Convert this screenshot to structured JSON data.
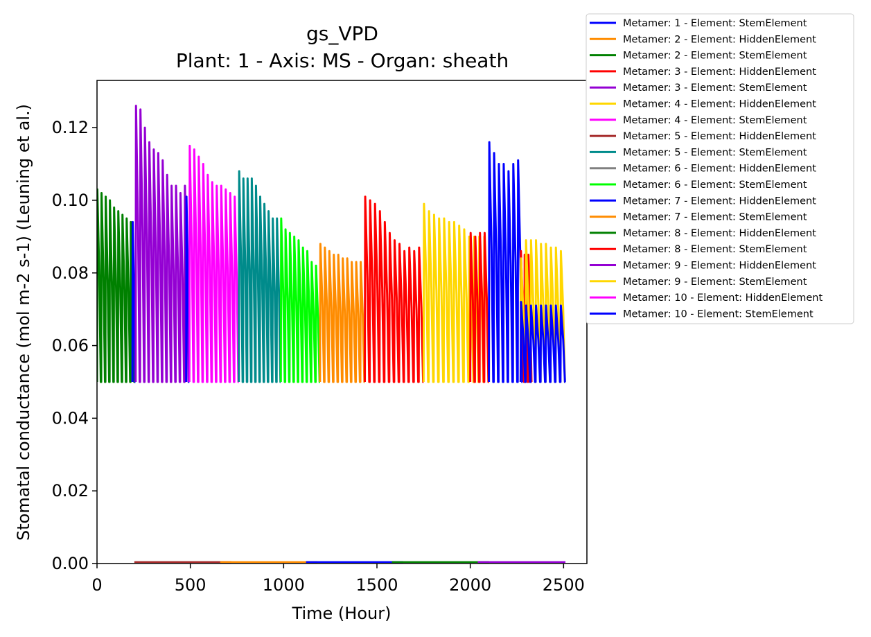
{
  "chart_data": {
    "type": "line",
    "title": "gs_VPD",
    "subtitle": "Plant: 1 - Axis: MS - Organ: sheath",
    "xlabel": "Time (Hour)",
    "ylabel": "Stomatal conductance (mol m-2 s-1) (Leuning et al.)",
    "xlim": [
      0,
      2625
    ],
    "ylim": [
      0,
      0.133
    ],
    "x_ticks": [
      0,
      500,
      1000,
      1500,
      2000,
      2500
    ],
    "x_tick_labels": [
      "0",
      "500",
      "1000",
      "1500",
      "2000",
      "2500"
    ],
    "y_ticks": [
      0,
      0.02,
      0.04,
      0.06,
      0.08,
      0.1,
      0.12
    ],
    "y_tick_labels": [
      "0.00",
      "0.02",
      "0.04",
      "0.06",
      "0.08",
      "0.10",
      "0.12"
    ],
    "grid": false,
    "legend_position": "outside-top-right",
    "night_floor": 0.05,
    "legend": [
      {
        "label": "Metamer: 1 - Element: StemElement",
        "color": "#0000ff"
      },
      {
        "label": "Metamer: 2 - Element: HiddenElement",
        "color": "#ff8c00"
      },
      {
        "label": "Metamer: 2 - Element: StemElement",
        "color": "#008000"
      },
      {
        "label": "Metamer: 3 - Element: HiddenElement",
        "color": "#ff0000"
      },
      {
        "label": "Metamer: 3 - Element: StemElement",
        "color": "#9400d3"
      },
      {
        "label": "Metamer: 4 - Element: HiddenElement",
        "color": "#ffd700"
      },
      {
        "label": "Metamer: 4 - Element: StemElement",
        "color": "#ff00ff"
      },
      {
        "label": "Metamer: 5 - Element: HiddenElement",
        "color": "#a52a2a"
      },
      {
        "label": "Metamer: 5 - Element: StemElement",
        "color": "#008b8b"
      },
      {
        "label": "Metamer: 6 - Element: HiddenElement",
        "color": "#808080"
      },
      {
        "label": "Metamer: 6 - Element: StemElement",
        "color": "#00ff00"
      },
      {
        "label": "Metamer: 7 - Element: HiddenElement",
        "color": "#0000ff"
      },
      {
        "label": "Metamer: 7 - Element: StemElement",
        "color": "#ff8c00"
      },
      {
        "label": "Metamer: 8 - Element: HiddenElement",
        "color": "#008000"
      },
      {
        "label": "Metamer: 8 - Element: StemElement",
        "color": "#ff0000"
      },
      {
        "label": "Metamer: 9 - Element: HiddenElement",
        "color": "#9400d3"
      },
      {
        "label": "Metamer: 9 - Element: StemElement",
        "color": "#ffd700"
      },
      {
        "label": "Metamer: 10 - Element: HiddenElement",
        "color": "#ff00ff"
      },
      {
        "label": "Metamer: 10 - Element: StemElement",
        "color": "#0000ff"
      }
    ],
    "series": [
      {
        "color": "#008000",
        "x_start": 0,
        "x_end": 202,
        "peaks": [
          0.103,
          0.102,
          0.101,
          0.1,
          0.098,
          0.097,
          0.096,
          0.095,
          0.094
        ]
      },
      {
        "color": "#0000ff",
        "x_start": 190,
        "x_end": 206,
        "peaks": [
          0.094
        ]
      },
      {
        "color": "#9400d3",
        "x_start": 207,
        "x_end": 493,
        "peaks": [
          0.126,
          0.125,
          0.12,
          0.116,
          0.114,
          0.113,
          0.111,
          0.107,
          0.104,
          0.104,
          0.102,
          0.104
        ]
      },
      {
        "color": "#0000ff",
        "x_start": 478,
        "x_end": 495,
        "peaks": [
          0.101
        ]
      },
      {
        "color": "#ff00ff",
        "x_start": 495,
        "x_end": 760,
        "peaks": [
          0.115,
          0.114,
          0.112,
          0.11,
          0.107,
          0.105,
          0.104,
          0.104,
          0.103,
          0.102,
          0.101
        ]
      },
      {
        "color": "#008b8b",
        "x_start": 760,
        "x_end": 985,
        "peaks": [
          0.108,
          0.106,
          0.106,
          0.106,
          0.104,
          0.101,
          0.099,
          0.097,
          0.095,
          0.095
        ]
      },
      {
        "color": "#00ff00",
        "x_start": 985,
        "x_end": 1195,
        "peaks": [
          0.095,
          0.092,
          0.091,
          0.09,
          0.089,
          0.087,
          0.086,
          0.083,
          0.082
        ]
      },
      {
        "color": "#ff8c00",
        "x_start": 1195,
        "x_end": 1435,
        "peaks": [
          0.088,
          0.087,
          0.086,
          0.085,
          0.085,
          0.084,
          0.084,
          0.083,
          0.083,
          0.083
        ]
      },
      {
        "color": "#ff0000",
        "x_start": 1435,
        "x_end": 1750,
        "peaks": [
          0.101,
          0.1,
          0.099,
          0.097,
          0.094,
          0.091,
          0.089,
          0.088,
          0.086,
          0.087,
          0.086,
          0.087
        ]
      },
      {
        "color": "#ffd700",
        "x_start": 1750,
        "x_end": 2100,
        "peaks": [
          0.099,
          0.097,
          0.096,
          0.095,
          0.095,
          0.094,
          0.094,
          0.093,
          0.092,
          0.09,
          0.09,
          0.09,
          0.09
        ]
      },
      {
        "color": "#ff0000",
        "x_start": 2000,
        "x_end": 2100,
        "peaks": [
          0.091,
          0.09,
          0.091,
          0.091
        ]
      },
      {
        "color": "#0000ff",
        "x_start": 2100,
        "x_end": 2280,
        "peaks": [
          0.116,
          0.113,
          0.11,
          0.11,
          0.108,
          0.11,
          0.111
        ]
      },
      {
        "color": "#ff0000",
        "x_start": 2270,
        "x_end": 2330,
        "peaks": [
          0.086,
          0.085,
          0.085
        ]
      },
      {
        "color": "#ffd700",
        "x_start": 2270,
        "x_end": 2510,
        "peaks": [
          0.084,
          0.089,
          0.089,
          0.089,
          0.088,
          0.088,
          0.087,
          0.087,
          0.086
        ]
      },
      {
        "color": "#0000ff",
        "x_start": 2270,
        "x_end": 2510,
        "peaks": [
          0.072,
          0.071,
          0.071,
          0.071,
          0.071,
          0.071,
          0.071,
          0.071,
          0.071
        ]
      }
    ]
  }
}
